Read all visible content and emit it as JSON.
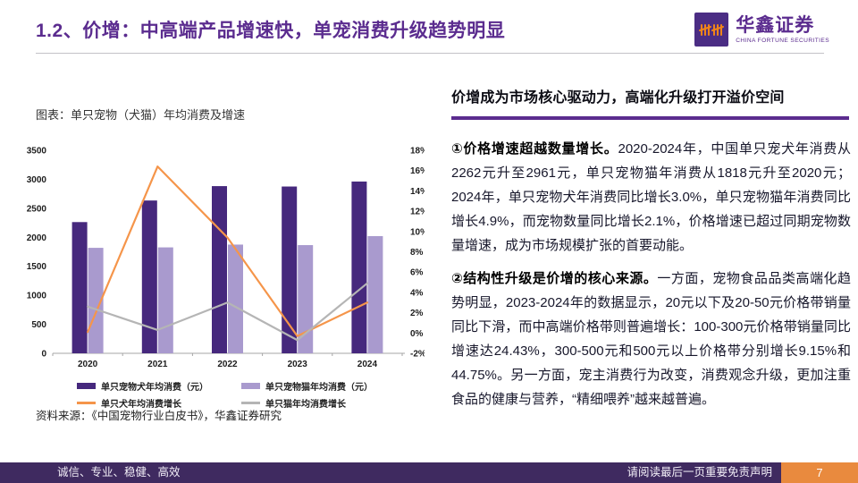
{
  "header": {
    "title": "1.2、价增：中高端产品增速快，单宠消费升级趋势明显",
    "logo_cn": "华鑫证券",
    "logo_en": "CHINA FORTUNE SECURITIES"
  },
  "figure": {
    "caption": "图表：单只宠物（犬猫）年均消费及增速",
    "source": "资料来源：《中国宠物行业白皮书》，华鑫证券研究"
  },
  "chart_data": {
    "type": "bar",
    "subtype": "bar+line combo, dual axis",
    "title": "单只宠物（犬猫）年均消费及增速",
    "categories": [
      "2020",
      "2021",
      "2022",
      "2023",
      "2024"
    ],
    "bar_series": [
      {
        "name": "单只宠物犬年均消费（元）",
        "axis": "left",
        "color": "#46287d",
        "values": [
          2262,
          2634,
          2882,
          2875,
          2961
        ]
      },
      {
        "name": "单只宠物猫年均消费（元）",
        "axis": "left",
        "color": "#a99ace",
        "values": [
          1818,
          1826,
          1874,
          1865,
          2020
        ]
      }
    ],
    "line_series": [
      {
        "name": "单只犬年均消费增长",
        "axis": "right",
        "color": "#f5954a",
        "values": [
          0.1,
          16.4,
          9.4,
          -0.3,
          3.0
        ]
      },
      {
        "name": "单只猫年均消费增长",
        "axis": "right",
        "color": "#b5b5b5",
        "values": [
          2.6,
          0.3,
          3.0,
          -0.7,
          4.9
        ]
      }
    ],
    "left_axis": {
      "min": 0,
      "max": 3500,
      "step": 500
    },
    "right_axis": {
      "min": -2,
      "max": 18,
      "step": 2,
      "suffix": "%"
    },
    "grid": false,
    "legend_position": "bottom"
  },
  "panel": {
    "heading": "价增成为市场核心驱动力，高端化升级打开溢价空间",
    "paragraphs": [
      {
        "lead": "①价格增速超越数量增长。",
        "body": "2020-2024年，中国单只宠犬年消费从2262元升至2961元，单只宠物猫年消费从1818元升至2020元；2024年，单只宠物犬年消费同比增长3.0%，单只宠物猫年消费同比增长4.9%，而宠物数量同比增长2.1%，价格增速已超过同期宠物数量增速，成为市场规模扩张的首要动能。"
      },
      {
        "lead": "②结构性升级是价增的核心来源。",
        "body": "一方面，宠物食品品类高端化趋势明显，2023-2024年的数据显示，20元以下及20-50元价格带销量同比下滑，而中高端价格带则普遍增长：100-300元价格带销量同比增速达24.43%，300-500元和500元以上价格带分别增长9.15%和44.75%。另一方面，宠主消费行为改变，消费观念升级，更加注重食品的健康与营养，“精细喂养”越来越普遍。"
      }
    ]
  },
  "footer": {
    "slogan": "诚信、专业、稳健、高效",
    "disclaimer": "请阅读最后一页重要免责声明",
    "page_number": "7"
  },
  "colors": {
    "brand_purple": "#5b2c8f",
    "bar_dog": "#46287d",
    "bar_cat": "#a99ace",
    "line_dog": "#f5954a",
    "line_cat": "#b5b5b5",
    "footer_bg": "#3f2a60",
    "footer_page_bg": "#e98a3e"
  }
}
